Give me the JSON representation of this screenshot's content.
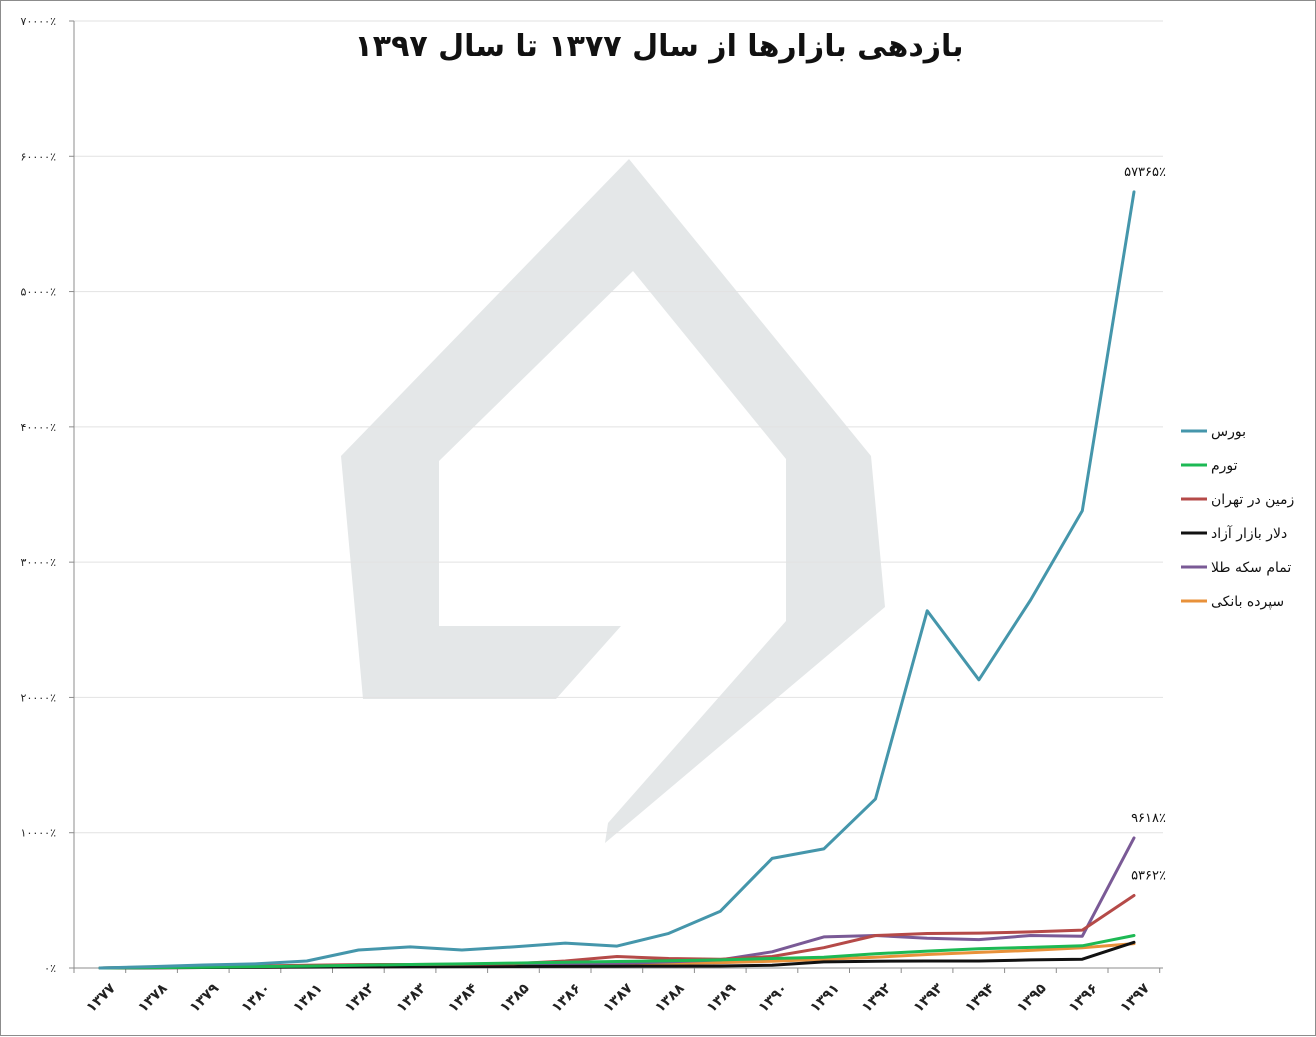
{
  "chart_data": {
    "type": "line",
    "title": "بازدهی بازارها از سال ۱۳۷۷ تا سال ۱۳۹۷",
    "xlabel": "",
    "ylabel": "",
    "ylim": [
      0,
      70000
    ],
    "y_ticks": [
      0,
      10000,
      20000,
      30000,
      40000,
      50000,
      60000,
      70000
    ],
    "y_tick_labels": [
      "۰٪",
      "۱۰۰۰۰٪",
      "۲۰۰۰۰٪",
      "۳۰۰۰۰٪",
      "۴۰۰۰۰٪",
      "۵۰۰۰۰٪",
      "۶۰۰۰۰٪",
      "۷۰۰۰۰٪"
    ],
    "grid": true,
    "legend_position": "right",
    "categories": [
      "۱۳۷۷",
      "۱۳۷۸",
      "۱۳۷۹",
      "۱۳۸۰",
      "۱۳۸۱",
      "۱۳۸۲",
      "۱۳۸۳",
      "۱۳۸۴",
      "۱۳۸۵",
      "۱۳۸۶",
      "۱۳۸۷",
      "۱۳۸۸",
      "۱۳۸۹",
      "۱۳۹۰",
      "۱۳۹۱",
      "۱۳۹۲",
      "۱۳۹۳",
      "۱۳۹۴",
      "۱۳۹۵",
      "۱۳۹۶",
      "۱۳۹۷"
    ],
    "series": [
      {
        "name": "بورس",
        "color": "#4596ab",
        "values": [
          0,
          100,
          220,
          300,
          520,
          1330,
          1560,
          1330,
          1560,
          1840,
          1620,
          2560,
          4200,
          8100,
          8800,
          12500,
          26400,
          21300,
          27200,
          33800,
          57365
        ]
      },
      {
        "name": "تورم",
        "color": "#1db954",
        "values": [
          0,
          30,
          60,
          100,
          140,
          200,
          260,
          300,
          360,
          420,
          480,
          540,
          600,
          700,
          800,
          1050,
          1250,
          1420,
          1520,
          1640,
          2400
        ]
      },
      {
        "name": "زمین در تهران",
        "color": "#b54a48",
        "values": [
          0,
          50,
          100,
          150,
          200,
          250,
          260,
          270,
          320,
          520,
          850,
          700,
          650,
          850,
          1500,
          2400,
          2550,
          2580,
          2670,
          2800,
          5362
        ]
      },
      {
        "name": "دلار بازار آزاد",
        "color": "#111111",
        "values": [
          0,
          20,
          40,
          60,
          70,
          80,
          90,
          100,
          110,
          120,
          130,
          140,
          150,
          200,
          450,
          500,
          520,
          520,
          600,
          650,
          1900
        ]
      },
      {
        "name": "تمام سکه طلا",
        "color": "#7a5a96",
        "values": [
          0,
          20,
          40,
          60,
          80,
          100,
          150,
          200,
          250,
          300,
          350,
          450,
          600,
          1200,
          2300,
          2400,
          2200,
          2100,
          2400,
          2350,
          9618
        ]
      },
      {
        "name": "سپرده بانکی",
        "color": "#e8913a",
        "values": [
          0,
          20,
          40,
          60,
          80,
          100,
          120,
          150,
          200,
          250,
          300,
          350,
          400,
          500,
          650,
          800,
          1000,
          1150,
          1300,
          1500,
          1800
        ]
      }
    ],
    "annotations": [
      {
        "series": "بورس",
        "text": "۵۷۳۶۵٪"
      },
      {
        "series": "تمام سکه طلا",
        "text": "۹۶۱۸٪"
      },
      {
        "series": "زمین در تهران",
        "text": "۵۳۶۲٪"
      }
    ],
    "watermark_color": "#e4e7e8"
  }
}
